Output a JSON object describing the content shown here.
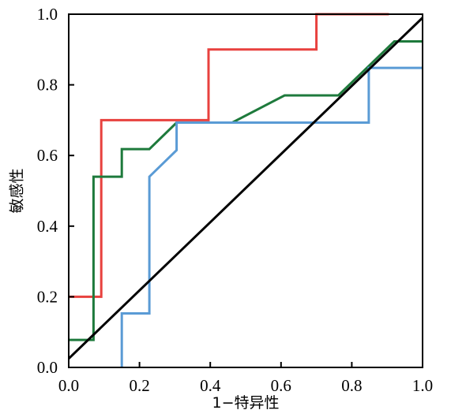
{
  "chart_data": {
    "type": "line",
    "title": "",
    "xlabel": "1−特异性",
    "ylabel": "敏感性",
    "xlim": [
      0,
      1
    ],
    "ylim": [
      0,
      1
    ],
    "grid": false,
    "legend": "none",
    "x_ticks": [
      "0.0",
      "0.2",
      "0.4",
      "0.6",
      "0.8",
      "1.0"
    ],
    "y_ticks": [
      "0.0",
      "0.2",
      "0.4",
      "0.6",
      "0.8",
      "1.0"
    ],
    "series": [
      {
        "color": "#e8413e",
        "points": [
          [
            0,
            0.2
          ],
          [
            0.092,
            0.2
          ],
          [
            0.092,
            0.7
          ],
          [
            0.395,
            0.7
          ],
          [
            0.395,
            0.9
          ],
          [
            0.7,
            0.9
          ],
          [
            0.7,
            1.0
          ],
          [
            0.905,
            1.0
          ]
        ]
      },
      {
        "color": "#1e7a3c",
        "points": [
          [
            0,
            0.078
          ],
          [
            0.07,
            0.078
          ],
          [
            0.07,
            0.54
          ],
          [
            0.15,
            0.54
          ],
          [
            0.15,
            0.618
          ],
          [
            0.228,
            0.618
          ],
          [
            0.305,
            0.693
          ],
          [
            0.462,
            0.693
          ],
          [
            0.61,
            0.77
          ],
          [
            0.762,
            0.77
          ],
          [
            0.92,
            0.923
          ],
          [
            1.0,
            0.923
          ]
        ]
      },
      {
        "color": "#5a9bd5",
        "points": [
          [
            0.15,
            0
          ],
          [
            0.15,
            0.153
          ],
          [
            0.228,
            0.153
          ],
          [
            0.228,
            0.54
          ],
          [
            0.305,
            0.615
          ],
          [
            0.305,
            0.693
          ],
          [
            0.848,
            0.693
          ],
          [
            0.848,
            0.848
          ],
          [
            1.0,
            0.848
          ]
        ]
      },
      {
        "color": "#000000",
        "points": [
          [
            0,
            0.025
          ],
          [
            1.0,
            0.99
          ]
        ]
      }
    ]
  }
}
